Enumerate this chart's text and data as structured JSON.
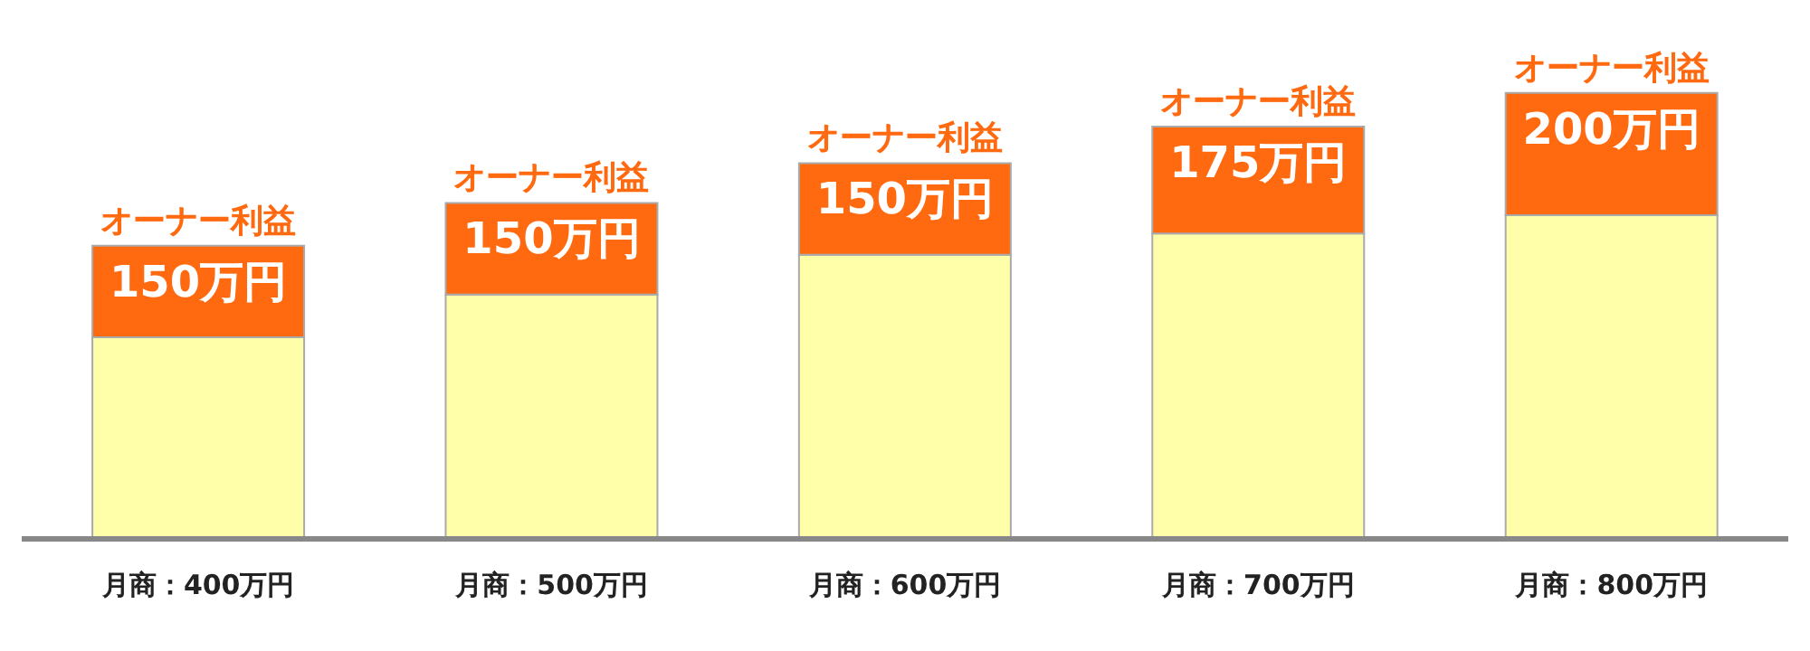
{
  "chart_data": {
    "type": "bar",
    "stacked": true,
    "ylim": [
      0,
      740
    ],
    "categories": [
      "月商：400万円",
      "月商：500万円",
      "月商：600万円",
      "月商：700万円",
      "月商：800万円"
    ],
    "series": [
      {
        "color": "#ffffaa",
        "values": [
          330,
          400,
          465,
          500,
          530
        ]
      },
      {
        "name": "オーナー利益",
        "color": "#ff6a10",
        "values": [
          150,
          150,
          150,
          175,
          200
        ],
        "value_labels": [
          "150万円",
          "150万円",
          "150万円",
          "175万円",
          "200万円"
        ]
      }
    ],
    "grid": false,
    "legend": false
  }
}
